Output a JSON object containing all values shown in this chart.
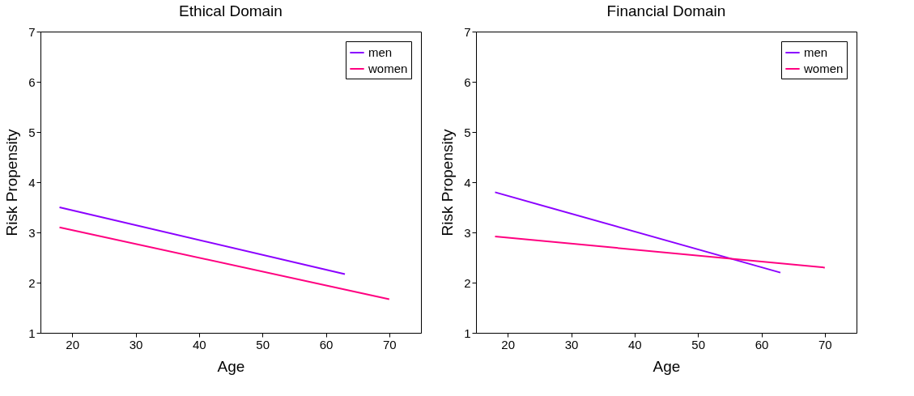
{
  "chart_data": [
    {
      "type": "line",
      "title": "Ethical Domain",
      "xlabel": "Age",
      "ylabel": "Risk Propensity",
      "xlim": [
        15,
        75
      ],
      "ylim": [
        1,
        7
      ],
      "xticks": [
        20,
        30,
        40,
        50,
        60,
        70
      ],
      "yticks": [
        1,
        2,
        3,
        4,
        5,
        6,
        7
      ],
      "grid": false,
      "legend": "top right",
      "marker": "none",
      "line_style": "solid",
      "series": [
        {
          "name": "men",
          "color": "#8b00ff",
          "x": [
            18,
            63
          ],
          "values": [
            3.5,
            2.17
          ]
        },
        {
          "name": "women",
          "color": "#ff0080",
          "x": [
            18,
            70
          ],
          "values": [
            3.1,
            1.67
          ]
        }
      ]
    },
    {
      "type": "line",
      "title": "Financial Domain",
      "xlabel": "Age",
      "ylabel": "Risk Propensity",
      "xlim": [
        15,
        75
      ],
      "ylim": [
        1,
        7
      ],
      "xticks": [
        20,
        30,
        40,
        50,
        60,
        70
      ],
      "yticks": [
        1,
        2,
        3,
        4,
        5,
        6,
        7
      ],
      "grid": false,
      "legend": "top right",
      "marker": "none",
      "line_style": "solid",
      "series": [
        {
          "name": "men",
          "color": "#8b00ff",
          "x": [
            18,
            63
          ],
          "values": [
            3.8,
            2.2
          ]
        },
        {
          "name": "women",
          "color": "#ff0080",
          "x": [
            18,
            70
          ],
          "values": [
            2.92,
            2.3
          ]
        }
      ]
    }
  ]
}
